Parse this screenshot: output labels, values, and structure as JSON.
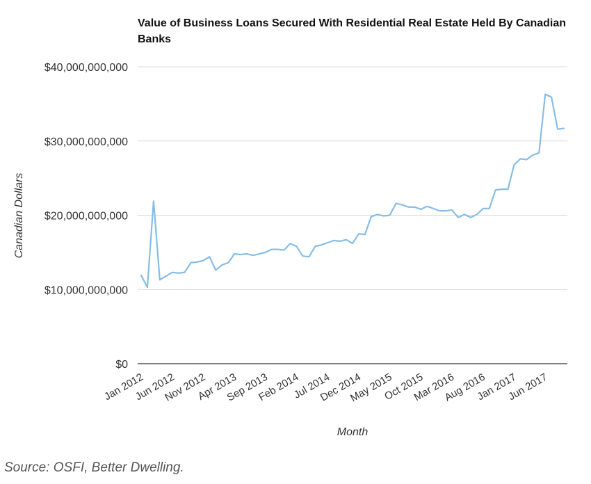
{
  "chart_data": {
    "type": "line",
    "title": "Value of Business Loans Secured With Residential Real Estate Held By Canadian Banks",
    "xlabel": "Month",
    "ylabel": "Canadian Dollars",
    "ylim": [
      0,
      40000000000
    ],
    "yticks": [
      {
        "value": 0,
        "label": "$0"
      },
      {
        "value": 10000000000,
        "label": "$10,000,000,000"
      },
      {
        "value": 20000000000,
        "label": "$20,000,000,000"
      },
      {
        "value": 30000000000,
        "label": "$30,000,000,000"
      },
      {
        "value": 40000000000,
        "label": "$40,000,000,000"
      }
    ],
    "xticks": [
      "Jan 2012",
      "Jun 2012",
      "Nov 2012",
      "Apr 2013",
      "Sep 2013",
      "Feb 2014",
      "Jul 2014",
      "Dec 2014",
      "May 2015",
      "Oct 2015",
      "Mar 2016",
      "Aug 2016",
      "Jan 2017",
      "Jun 2017"
    ],
    "grid": true,
    "line_color": "#85bde6",
    "series": [
      {
        "values": [
          11.9,
          10.3,
          21.9,
          11.3,
          11.8,
          12.3,
          12.2,
          12.3,
          13.6,
          13.7,
          13.9,
          14.4,
          12.6,
          13.3,
          13.6,
          14.8,
          14.7,
          14.8,
          14.6,
          14.8,
          15.0,
          15.4,
          15.4,
          15.3,
          16.2,
          15.8,
          14.5,
          14.4,
          15.8,
          16.0,
          16.3,
          16.6,
          16.5,
          16.7,
          16.2,
          17.5,
          17.4,
          19.8,
          20.1,
          19.9,
          20.0,
          21.6,
          21.4,
          21.1,
          21.1,
          20.8,
          21.2,
          20.9,
          20.6,
          20.6,
          20.7,
          19.7,
          20.1,
          19.7,
          20.1,
          20.9,
          20.9,
          23.4,
          23.5,
          23.5,
          26.8,
          27.6,
          27.5,
          28.1,
          28.4,
          36.3,
          35.9,
          31.6,
          31.7
        ]
      }
    ]
  },
  "source": "Source: OSFI, Better Dwelling."
}
